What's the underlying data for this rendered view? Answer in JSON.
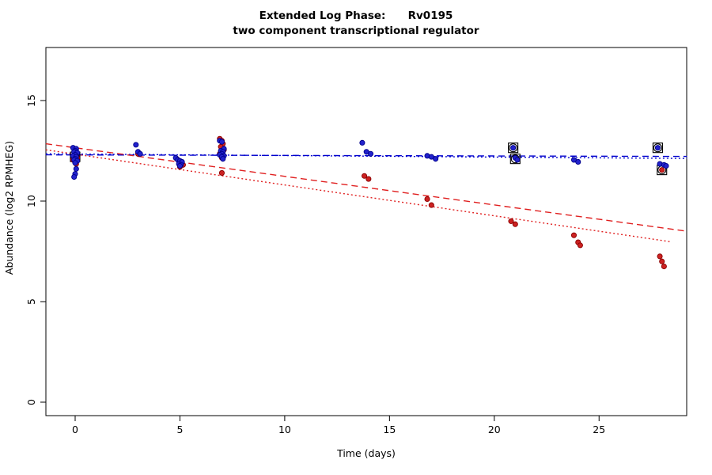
{
  "title": {
    "line1": "Extended Log Phase:      Rv0195",
    "line2": "two component transcriptional regulator"
  },
  "chart_data": {
    "type": "scatter",
    "title": "Extended Log Phase: Rv0195",
    "subtitle": "two component transcriptional regulator",
    "xlabel": "Time  (days)",
    "ylabel": "Abundance  (log2 RPMHEG)",
    "xticks": [
      0,
      5,
      10,
      15,
      20,
      25
    ],
    "yticks": [
      0,
      5,
      10,
      15
    ],
    "xlim": [
      -1.4,
      29.2
    ],
    "ylim": [
      -0.7,
      17.6
    ],
    "grid": false,
    "legend": "none",
    "series": [
      {
        "name": "blue-series",
        "color": "#2222CC",
        "edge_color": "#00008B",
        "points": [
          [
            -0.1,
            12.65
          ],
          [
            0.05,
            12.6
          ],
          [
            0.0,
            12.5
          ],
          [
            -0.05,
            12.45
          ],
          [
            0.1,
            12.4
          ],
          [
            0.0,
            12.3
          ],
          [
            -0.1,
            12.25
          ],
          [
            0.05,
            12.2
          ],
          [
            0.0,
            12.1
          ],
          [
            -0.05,
            12.05
          ],
          [
            0.1,
            12.0
          ],
          [
            0.0,
            11.9
          ],
          [
            0.05,
            11.6
          ],
          [
            0.0,
            11.35
          ],
          [
            -0.05,
            11.2
          ],
          [
            2.9,
            12.8
          ],
          [
            3.0,
            12.45
          ],
          [
            3.1,
            12.35
          ],
          [
            4.8,
            12.15
          ],
          [
            4.9,
            12.05
          ],
          [
            5.0,
            12.0
          ],
          [
            5.1,
            11.95
          ],
          [
            4.95,
            11.85
          ],
          [
            5.05,
            11.8
          ],
          [
            5.0,
            11.75
          ],
          [
            6.9,
            13.0
          ],
          [
            7.0,
            12.95
          ],
          [
            7.1,
            12.6
          ],
          [
            6.95,
            12.5
          ],
          [
            7.05,
            12.45
          ],
          [
            7.0,
            12.35
          ],
          [
            6.9,
            12.3
          ],
          [
            7.1,
            12.25
          ],
          [
            7.0,
            12.2
          ],
          [
            7.05,
            12.1
          ],
          [
            13.7,
            12.9
          ],
          [
            13.9,
            12.45
          ],
          [
            14.1,
            12.35
          ],
          [
            16.8,
            12.25
          ],
          [
            17.0,
            12.2
          ],
          [
            17.2,
            12.1
          ],
          [
            20.9,
            12.65
          ],
          [
            21.0,
            12.15
          ],
          [
            21.1,
            12.05
          ],
          [
            23.8,
            12.05
          ],
          [
            24.0,
            11.95
          ],
          [
            27.8,
            12.65
          ],
          [
            27.9,
            11.85
          ],
          [
            28.1,
            11.8
          ],
          [
            28.2,
            11.75
          ]
        ]
      },
      {
        "name": "red-series",
        "color": "#CC2222",
        "edge_color": "#8B0000",
        "points": [
          [
            -0.05,
            12.6
          ],
          [
            0.05,
            12.45
          ],
          [
            0.0,
            12.3
          ],
          [
            0.1,
            12.15
          ],
          [
            -0.1,
            12.05
          ],
          [
            0.0,
            11.95
          ],
          [
            0.05,
            11.85
          ],
          [
            3.0,
            12.35
          ],
          [
            4.85,
            12.1
          ],
          [
            4.95,
            12.0
          ],
          [
            5.05,
            11.9
          ],
          [
            5.15,
            11.8
          ],
          [
            5.0,
            11.7
          ],
          [
            6.9,
            13.1
          ],
          [
            7.0,
            13.0
          ],
          [
            7.05,
            12.85
          ],
          [
            6.95,
            12.7
          ],
          [
            7.1,
            12.55
          ],
          [
            7.0,
            12.45
          ],
          [
            6.9,
            12.35
          ],
          [
            7.05,
            12.25
          ],
          [
            7.0,
            12.15
          ],
          [
            7.0,
            11.4
          ],
          [
            13.8,
            11.25
          ],
          [
            14.0,
            11.1
          ],
          [
            16.8,
            10.1
          ],
          [
            17.0,
            9.8
          ],
          [
            20.8,
            9.0
          ],
          [
            21.0,
            8.85
          ],
          [
            23.8,
            8.3
          ],
          [
            24.0,
            7.95
          ],
          [
            24.1,
            7.8
          ],
          [
            27.9,
            7.25
          ],
          [
            28.0,
            7.0
          ],
          [
            28.1,
            6.75
          ],
          [
            28.0,
            11.55
          ]
        ]
      }
    ],
    "flagged_points": [
      [
        0.0,
        12.2
      ],
      [
        20.9,
        12.65
      ],
      [
        21.0,
        12.1
      ],
      [
        27.8,
        12.65
      ],
      [
        28.0,
        11.55
      ]
    ],
    "flag_color": "#000000",
    "trend_lines": [
      {
        "name": "blue-dashed-fit",
        "color": "#0000CD",
        "style": "dashed",
        "from": [
          -1.4,
          12.3
        ],
        "to": [
          29.2,
          12.22
        ]
      },
      {
        "name": "blue-dotted-fit",
        "color": "#0000CD",
        "style": "dotted",
        "from": [
          -1.4,
          12.35
        ],
        "to": [
          29.2,
          12.12
        ]
      },
      {
        "name": "red-dashed-fit",
        "color": "#E02020",
        "style": "dashed",
        "from": [
          -1.4,
          12.85
        ],
        "to": [
          29.2,
          8.5
        ]
      },
      {
        "name": "red-dotted-fit",
        "color": "#E02020",
        "style": "dotted",
        "from": [
          -1.4,
          12.55
        ],
        "to": [
          28.4,
          7.98
        ]
      }
    ]
  }
}
